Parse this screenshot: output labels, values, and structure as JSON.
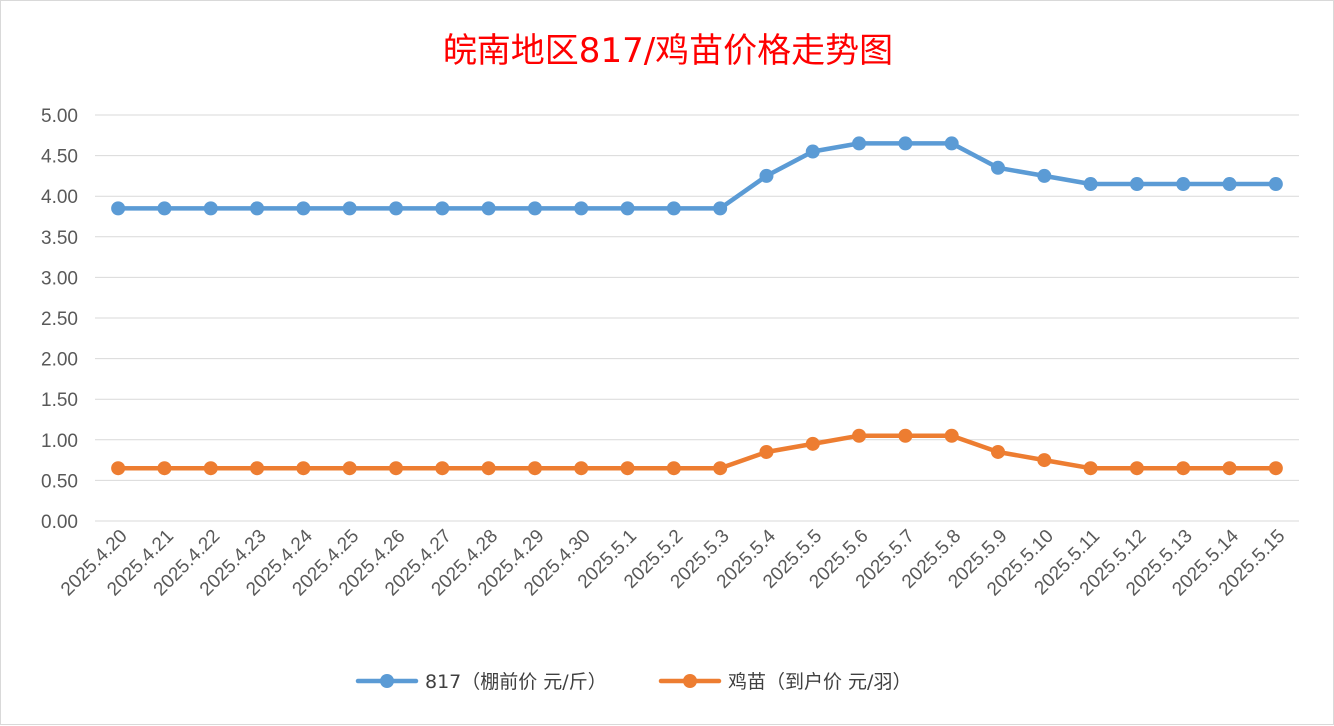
{
  "chart_data": {
    "type": "line",
    "title": "皖南地区817/鸡苗价格走势图",
    "xlabel": "",
    "ylabel": "",
    "ylim": [
      0,
      5
    ],
    "ytick_step": 0.5,
    "ytick_labels": [
      "0.00",
      "0.50",
      "1.00",
      "1.50",
      "2.00",
      "2.50",
      "3.00",
      "3.50",
      "4.00",
      "4.50",
      "5.00"
    ],
    "grid": true,
    "legend_position": "bottom",
    "categories": [
      "2025.4.20",
      "2025.4.21",
      "2025.4.22",
      "2025.4.23",
      "2025.4.24",
      "2025.4.25",
      "2025.4.26",
      "2025.4.27",
      "2025.4.28",
      "2025.4.29",
      "2025.4.30",
      "2025.5.1",
      "2025.5.2",
      "2025.5.3",
      "2025.5.4",
      "2025.5.5",
      "2025.5.6",
      "2025.5.7",
      "2025.5.8",
      "2025.5.9",
      "2025.5.10",
      "2025.5.11",
      "2025.5.12",
      "2025.5.13",
      "2025.5.14",
      "2025.5.15"
    ],
    "series": [
      {
        "name": "817（棚前价 元/斤）",
        "color": "#5b9bd5",
        "values": [
          3.85,
          3.85,
          3.85,
          3.85,
          3.85,
          3.85,
          3.85,
          3.85,
          3.85,
          3.85,
          3.85,
          3.85,
          3.85,
          3.85,
          4.25,
          4.55,
          4.65,
          4.65,
          4.65,
          4.35,
          4.25,
          4.15,
          4.15,
          4.15,
          4.15,
          4.15
        ]
      },
      {
        "name": "鸡苗（到户价 元/羽）",
        "color": "#ed7d31",
        "values": [
          0.65,
          0.65,
          0.65,
          0.65,
          0.65,
          0.65,
          0.65,
          0.65,
          0.65,
          0.65,
          0.65,
          0.65,
          0.65,
          0.65,
          0.85,
          0.95,
          1.05,
          1.05,
          1.05,
          0.85,
          0.75,
          0.65,
          0.65,
          0.65,
          0.65,
          0.65
        ]
      }
    ],
    "colors": {
      "title": "#ff0000",
      "grid": "#d9d9d9",
      "tick_text": "#595959"
    }
  }
}
